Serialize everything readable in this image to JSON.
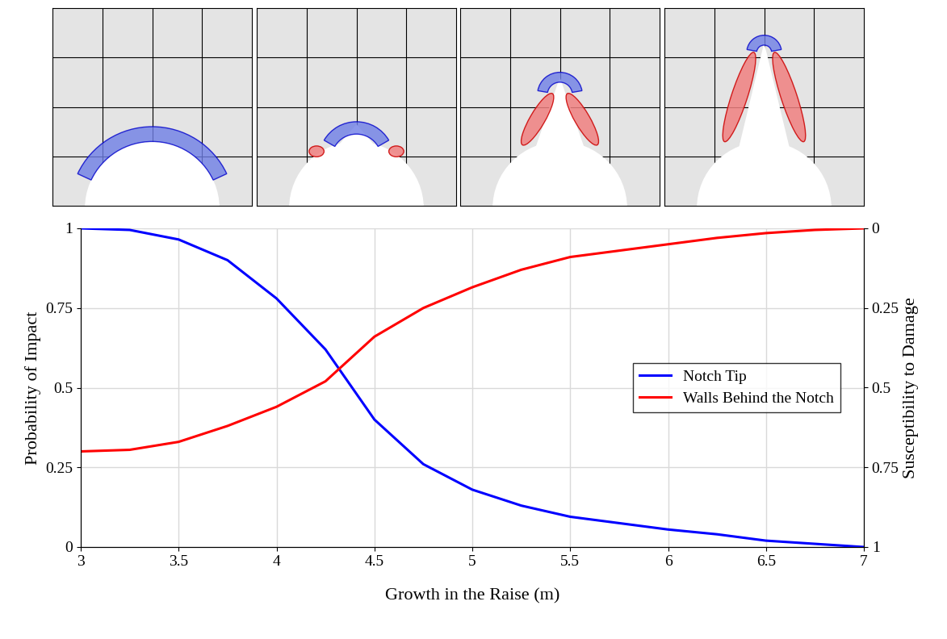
{
  "chart_data": {
    "type": "line",
    "x_label": "Growth in the Raise (m)",
    "y_label": "Probability of Impact",
    "y2_label": "Susceptibility to Damage",
    "x": [
      3,
      3.25,
      3.5,
      3.75,
      4,
      4.25,
      4.5,
      4.75,
      5,
      5.25,
      5.5,
      5.75,
      6,
      6.25,
      6.5,
      6.75,
      7
    ],
    "series": [
      {
        "name": "Notch Tip",
        "color": "#0000ff",
        "values": [
          1.0,
          0.995,
          0.965,
          0.9,
          0.78,
          0.62,
          0.4,
          0.26,
          0.18,
          0.13,
          0.095,
          0.075,
          0.055,
          0.04,
          0.02,
          0.01,
          0.0
        ]
      },
      {
        "name": "Walls Behind the Notch",
        "color": "#ff0000",
        "values": [
          0.3,
          0.305,
          0.33,
          0.38,
          0.44,
          0.52,
          0.66,
          0.75,
          0.815,
          0.87,
          0.91,
          0.93,
          0.95,
          0.97,
          0.985,
          0.995,
          1.0
        ]
      }
    ],
    "xlim": [
      3,
      7
    ],
    "xticks": [
      3,
      3.5,
      4,
      4.5,
      5,
      5.5,
      6,
      6.5,
      7
    ],
    "ylim": [
      0,
      1
    ],
    "yticks": [
      0,
      0.25,
      0.5,
      0.75,
      1
    ],
    "y2lim": [
      1,
      0
    ],
    "y2ticks": [
      0,
      0.25,
      0.5,
      0.75,
      1
    ],
    "grid": true,
    "legend": "center right"
  }
}
